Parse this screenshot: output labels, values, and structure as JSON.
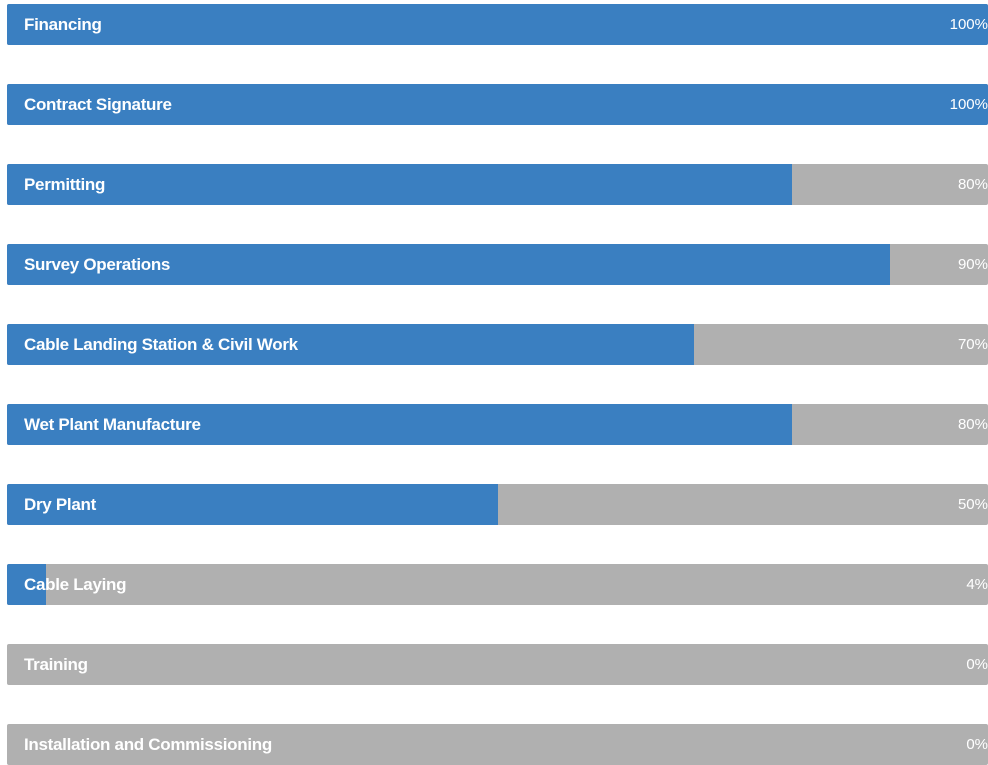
{
  "colors": {
    "fill": "#3a7fc1",
    "track": "#b0b0b0",
    "text": "#ffffff"
  },
  "progress_items": [
    {
      "label": "Financing",
      "percent_text": "100%",
      "value": 100
    },
    {
      "label": "Contract Signature",
      "percent_text": "100%",
      "value": 100
    },
    {
      "label": "Permitting",
      "percent_text": "80%",
      "value": 80
    },
    {
      "label": "Survey Operations",
      "percent_text": "90%",
      "value": 90
    },
    {
      "label": "Cable Landing Station & Civil Work",
      "percent_text": "70%",
      "value": 70
    },
    {
      "label": "Wet Plant Manufacture",
      "percent_text": "80%",
      "value": 80
    },
    {
      "label": "Dry Plant",
      "percent_text": "50%",
      "value": 50
    },
    {
      "label": "Cable Laying",
      "percent_text": "4%",
      "value": 4
    },
    {
      "label": "Training",
      "percent_text": "0%",
      "value": 0
    },
    {
      "label": "Installation and Commissioning",
      "percent_text": "0%",
      "value": 0
    }
  ]
}
